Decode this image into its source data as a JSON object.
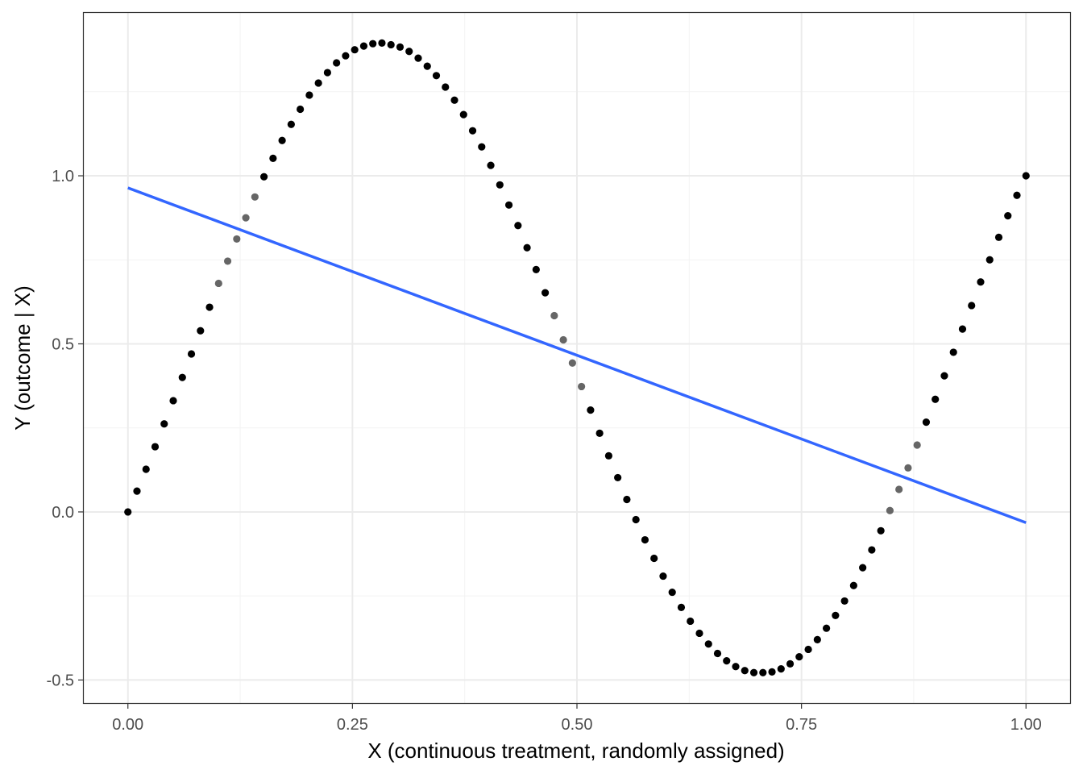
{
  "chart_data": {
    "type": "scatter",
    "title": "",
    "xlabel": "X (continuous treatment, randomly assigned)",
    "ylabel": "Y (outcome | X)",
    "xlim": [
      -0.05,
      1.05
    ],
    "ylim": [
      -0.571,
      1.487
    ],
    "grid": true,
    "x_ticks": [
      0,
      0.25,
      0.5,
      0.75,
      1
    ],
    "x_tick_labels": [
      "0.00",
      "0.25",
      "0.50",
      "0.75",
      "1.00"
    ],
    "y_ticks": [
      -0.5,
      0,
      0.5,
      1
    ],
    "y_tick_labels": [
      "-0.5",
      "0.0",
      "0.5",
      "1.0"
    ],
    "x_minor": [
      0.125,
      0.375,
      0.625,
      0.875
    ],
    "y_minor": [
      -0.25,
      0.25,
      0.75,
      1.25
    ],
    "points": {
      "n": 100,
      "x_start": 0,
      "x_end": 1,
      "y": [
        0,
        0.062,
        0.127,
        0.194,
        0.262,
        0.331,
        0.4,
        0.47,
        0.539,
        0.609,
        0.68,
        0.746,
        0.812,
        0.875,
        0.937,
        0.997,
        1.052,
        1.105,
        1.153,
        1.198,
        1.24,
        1.276,
        1.307,
        1.336,
        1.357,
        1.375,
        1.386,
        1.393,
        1.395,
        1.39,
        1.383,
        1.37,
        1.35,
        1.326,
        1.298,
        1.264,
        1.225,
        1.182,
        1.134,
        1.086,
        1.031,
        0.973,
        0.913,
        0.852,
        0.786,
        0.721,
        0.652,
        0.584,
        0.512,
        0.443,
        0.373,
        0.303,
        0.234,
        0.167,
        0.102,
        0.037,
        -0.023,
        -0.083,
        -0.138,
        -0.191,
        -0.239,
        -0.284,
        -0.325,
        -0.361,
        -0.393,
        -0.421,
        -0.443,
        -0.46,
        -0.472,
        -0.478,
        -0.478,
        -0.476,
        -0.467,
        -0.452,
        -0.431,
        -0.409,
        -0.38,
        -0.346,
        -0.308,
        -0.265,
        -0.219,
        -0.166,
        -0.113,
        -0.056,
        0.004,
        0.067,
        0.131,
        0.199,
        0.267,
        0.335,
        0.405,
        0.475,
        0.544,
        0.614,
        0.684,
        0.75,
        0.817,
        0.881,
        0.942,
        1.0
      ],
      "gray_indices": [
        10,
        11,
        12,
        13,
        14,
        47,
        48,
        49,
        50,
        84,
        85,
        86,
        87
      ],
      "color": "#000000",
      "gray_color": "#666666"
    },
    "fit_line": {
      "type": "linear",
      "x": [
        0,
        1
      ],
      "y": [
        0.964,
        -0.032
      ],
      "color": "#3366FF"
    }
  }
}
